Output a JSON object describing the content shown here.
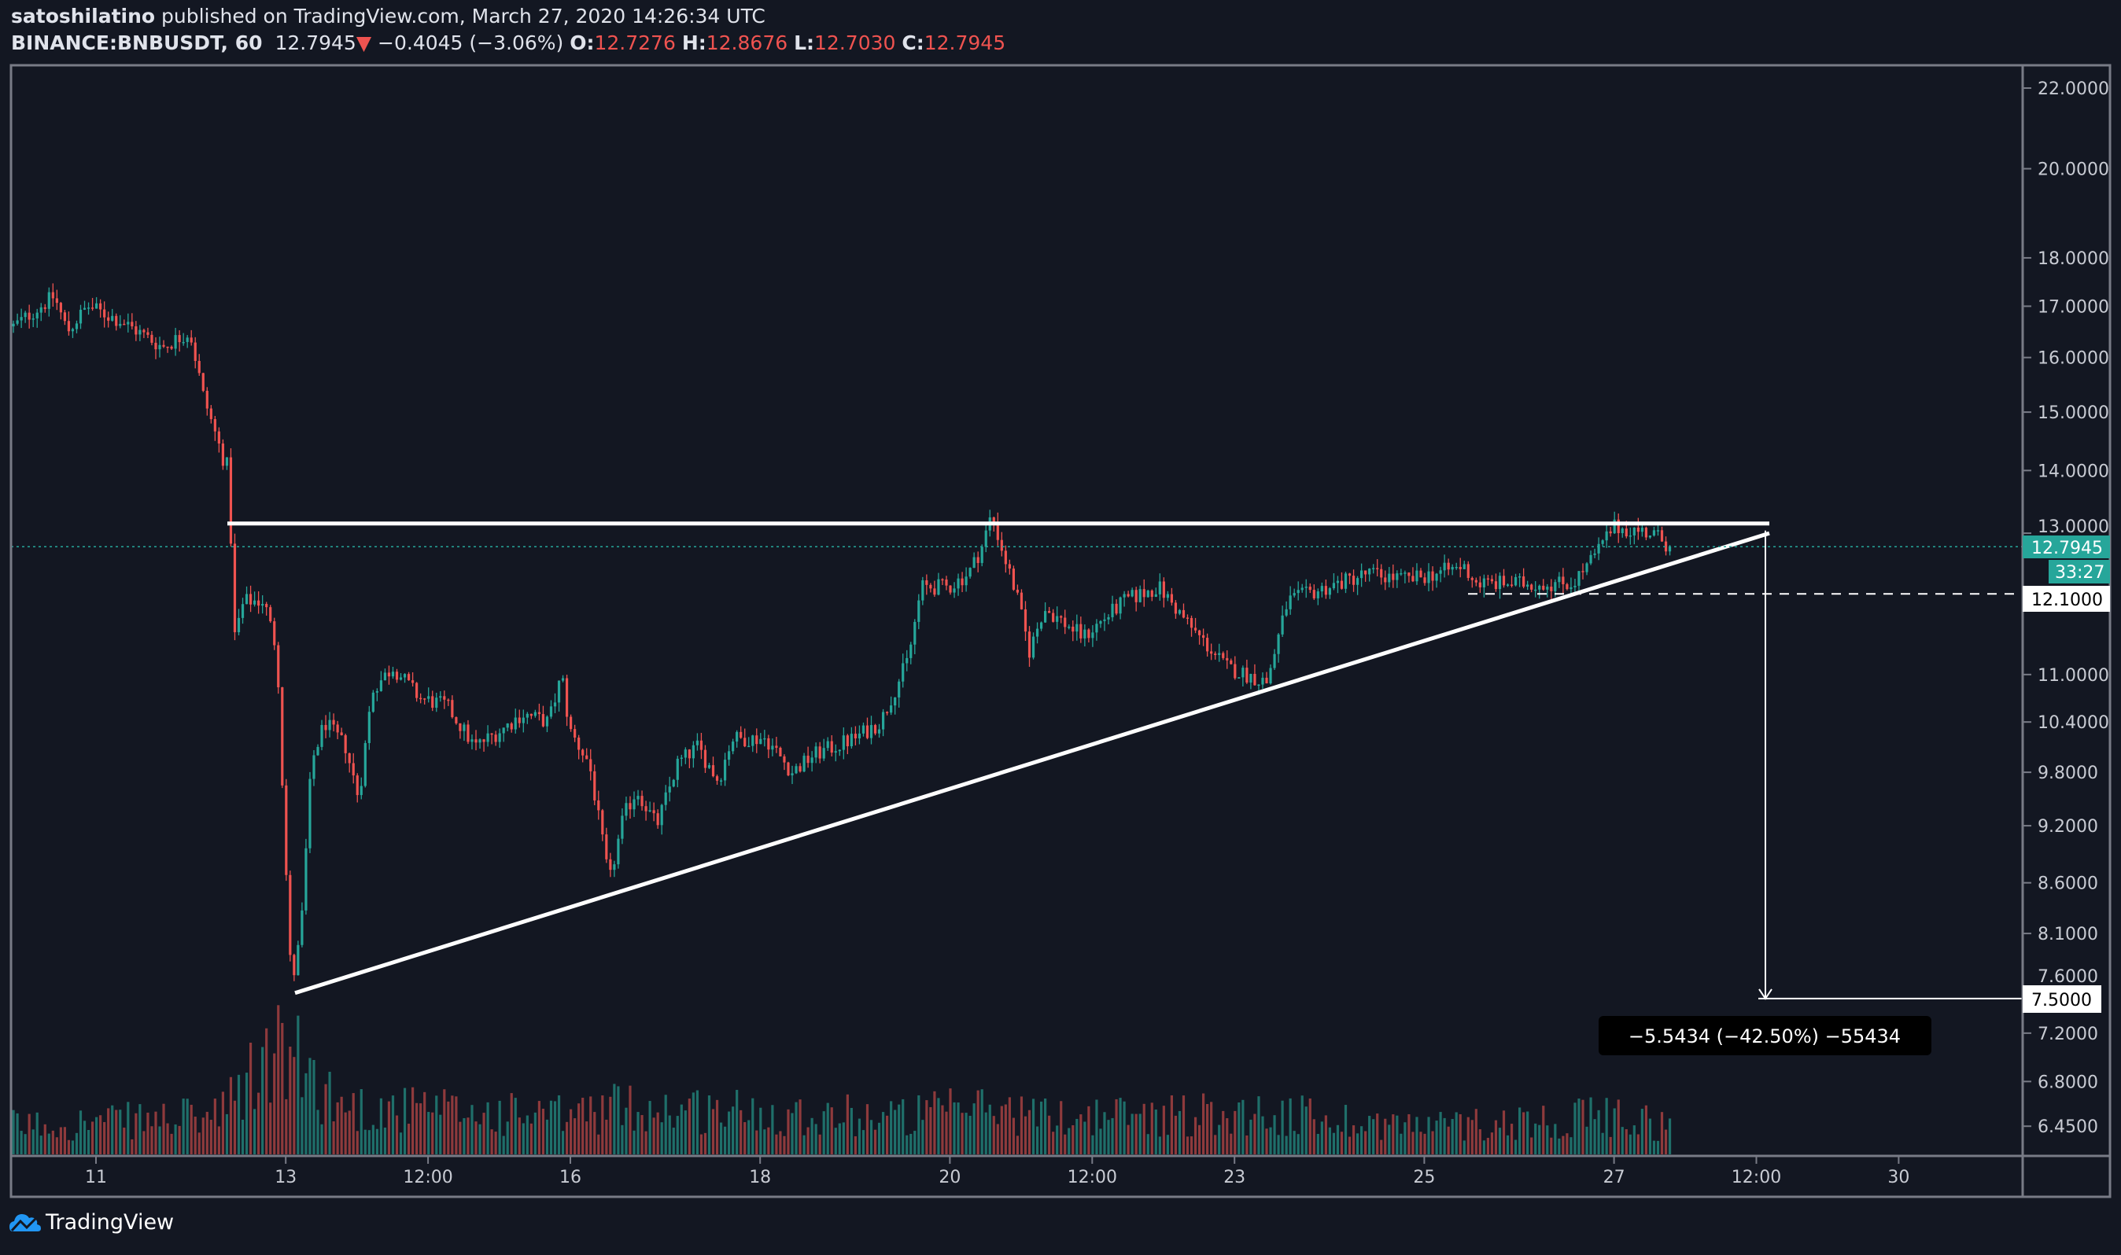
{
  "header": {
    "author": "satoshilatino",
    "published": "published on TradingView.com, March 27, 2020 14:26:34 UTC",
    "symbol": "BINANCE:BNBUSDT, 60",
    "last": "12.7945",
    "change": "−0.4045 (−3.06%)",
    "o_label": "O:",
    "o": "12.7276",
    "h_label": "H:",
    "h": "12.8676",
    "l_label": "L:",
    "l": "12.7030",
    "c_label": "C:",
    "c": "12.7945"
  },
  "price_axis": {
    "current_price": "12.7945",
    "countdown": "33:27",
    "support_label": "12.1000",
    "target_label": "7.5000"
  },
  "measure": {
    "label": "−5.5434 (−42.50%) −55434"
  },
  "branding": {
    "name": "TradingView"
  },
  "colors": {
    "bg": "#131722",
    "up": "#26a69a",
    "down": "#ef5350",
    "up_vol": "#1f6f6a",
    "down_vol": "#8e3a3c",
    "line": "#ffffff"
  },
  "chart_data": {
    "type": "candlestick",
    "title": "BINANCE:BNBUSDT, 60",
    "scale": "log",
    "ylim": [
      6.3,
      22.4
    ],
    "xlim_days": [
      10.07,
      31.6
    ],
    "y_ticks": [
      "22.0000",
      "20.0000",
      "18.0000",
      "17.0000",
      "16.0000",
      "15.0000",
      "14.0000",
      "13.0000",
      "11.0000",
      "10.4000",
      "9.8000",
      "9.2000",
      "8.6000",
      "8.1000",
      "7.6000",
      "7.2000",
      "6.8000",
      "6.4500"
    ],
    "x_ticks": [
      {
        "label": "11",
        "day": 11
      },
      {
        "label": "13",
        "day": 13
      },
      {
        "label": "12:00",
        "day": 14.5
      },
      {
        "label": "16",
        "day": 16
      },
      {
        "label": "18",
        "day": 18
      },
      {
        "label": "20",
        "day": 20
      },
      {
        "label": "12:00",
        "day": 21.5
      },
      {
        "label": "23",
        "day": 23
      },
      {
        "label": "25",
        "day": 25
      },
      {
        "label": "27",
        "day": 27
      },
      {
        "label": "12:00",
        "day": 28.5
      },
      {
        "label": "30",
        "day": 30
      }
    ],
    "price_path": [
      [
        10.13,
        16.6
      ],
      [
        10.56,
        17.2
      ],
      [
        10.7,
        16.5
      ],
      [
        10.91,
        17.0
      ],
      [
        11.27,
        16.7
      ],
      [
        11.7,
        16.2
      ],
      [
        11.99,
        16.5
      ],
      [
        12.13,
        15.3
      ],
      [
        12.34,
        14.2
      ],
      [
        12.41,
        14.0
      ],
      [
        12.44,
        11.4
      ],
      [
        12.56,
        12.0
      ],
      [
        12.77,
        12.0
      ],
      [
        12.91,
        11.3
      ],
      [
        12.99,
        9.0
      ],
      [
        13.06,
        7.6
      ],
      [
        13.16,
        8.1
      ],
      [
        13.27,
        9.9
      ],
      [
        13.41,
        10.4
      ],
      [
        13.63,
        10.1
      ],
      [
        13.77,
        9.5
      ],
      [
        13.91,
        10.8
      ],
      [
        14.13,
        11.1
      ],
      [
        14.41,
        10.7
      ],
      [
        14.7,
        10.6
      ],
      [
        14.99,
        10.1
      ],
      [
        15.27,
        10.3
      ],
      [
        15.49,
        10.5
      ],
      [
        15.77,
        10.4
      ],
      [
        15.91,
        11.0
      ],
      [
        15.99,
        10.3
      ],
      [
        16.2,
        9.9
      ],
      [
        16.41,
        8.6
      ],
      [
        16.56,
        9.3
      ],
      [
        16.7,
        9.6
      ],
      [
        16.91,
        9.2
      ],
      [
        17.13,
        9.9
      ],
      [
        17.34,
        10.1
      ],
      [
        17.56,
        9.7
      ],
      [
        17.7,
        10.2
      ],
      [
        18.06,
        10.2
      ],
      [
        18.34,
        9.8
      ],
      [
        18.56,
        10.0
      ],
      [
        18.99,
        10.2
      ],
      [
        19.27,
        10.4
      ],
      [
        19.56,
        11.2
      ],
      [
        19.7,
        12.2
      ],
      [
        19.99,
        12.2
      ],
      [
        20.2,
        12.4
      ],
      [
        20.34,
        12.8
      ],
      [
        20.44,
        13.3
      ],
      [
        20.56,
        12.7
      ],
      [
        20.7,
        12.1
      ],
      [
        20.84,
        11.3
      ],
      [
        20.99,
        11.9
      ],
      [
        21.41,
        11.5
      ],
      [
        21.84,
        12.0
      ],
      [
        22.2,
        12.2
      ],
      [
        22.56,
        11.6
      ],
      [
        22.91,
        11.1
      ],
      [
        23.34,
        10.9
      ],
      [
        23.56,
        12.0
      ],
      [
        23.99,
        12.2
      ],
      [
        24.41,
        12.4
      ],
      [
        24.84,
        12.3
      ],
      [
        25.41,
        12.5
      ],
      [
        25.56,
        12.25
      ],
      [
        26.56,
        12.25
      ],
      [
        26.77,
        12.6
      ],
      [
        26.99,
        13.1
      ],
      [
        27.41,
        13.0
      ],
      [
        27.59,
        12.7945
      ]
    ],
    "volume_level": [
      [
        10.1,
        0.15
      ],
      [
        12.3,
        0.2
      ],
      [
        12.9,
        0.55
      ],
      [
        13.2,
        0.45
      ],
      [
        13.6,
        0.25
      ],
      [
        15.9,
        0.2
      ],
      [
        16.5,
        0.25
      ],
      [
        19.5,
        0.2
      ],
      [
        20.4,
        0.25
      ],
      [
        21,
        0.2
      ],
      [
        23.2,
        0.22
      ],
      [
        25,
        0.15
      ],
      [
        27,
        0.2
      ],
      [
        27.6,
        0.15
      ]
    ],
    "drawings": {
      "resistance": 13.15,
      "ascending_trendline": [
        [
          13.06,
          7.55
        ],
        [
          28.6,
          13.0
        ]
      ],
      "support_dashed": 12.1,
      "target": 7.5,
      "measure_from": 13.04,
      "measure_to": 7.5
    }
  }
}
